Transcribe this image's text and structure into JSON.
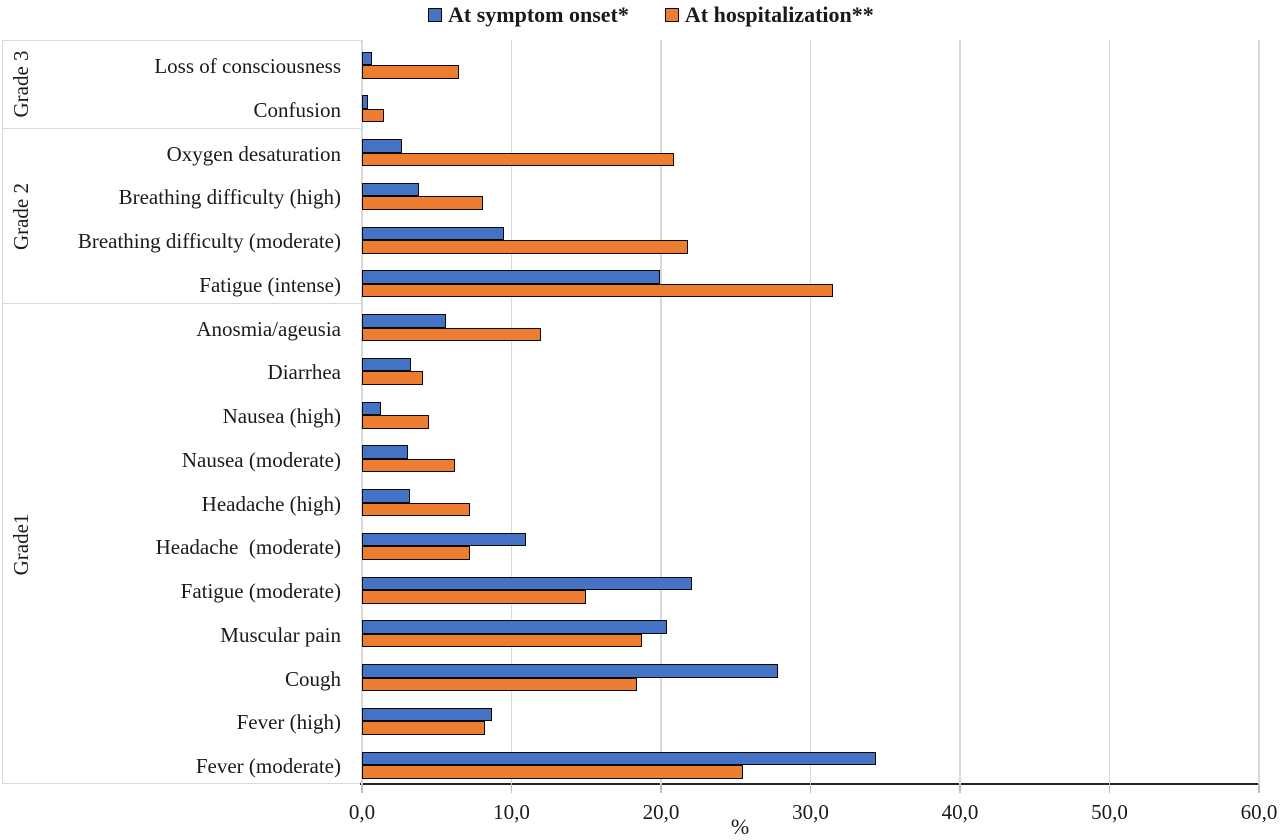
{
  "chart_data": {
    "type": "bar",
    "orientation": "horizontal",
    "title": "",
    "xlabel": "%",
    "xlim": [
      0,
      60
    ],
    "x_ticks": [
      "0,0",
      "10,0",
      "20,0",
      "30,0",
      "40,0",
      "50,0",
      "60,0"
    ],
    "grid": true,
    "legend_position": "top",
    "groups": [
      {
        "label": "Grade 3",
        "categories": [
          "Loss of consciousness",
          "Confusion"
        ]
      },
      {
        "label": "Grade 2",
        "categories": [
          "Oxygen desaturation",
          "Breathing difficulty (high)",
          "Breathing difficulty (moderate)",
          "Fatigue (intense)"
        ]
      },
      {
        "label": "Grade1",
        "categories": [
          "Anosmia/ageusia",
          "Diarrhea",
          "Nausea (high)",
          "Nausea (moderate)",
          "Headache (high)",
          "Headache  (moderate)",
          "Fatigue (moderate)",
          "Muscular pain",
          "Cough",
          "Fever (high)",
          "Fever (moderate)"
        ]
      }
    ],
    "categories": [
      "Loss of consciousness",
      "Confusion",
      "Oxygen desaturation",
      "Breathing difficulty (high)",
      "Breathing difficulty (moderate)",
      "Fatigue (intense)",
      "Anosmia/ageusia",
      "Diarrhea",
      "Nausea (high)",
      "Nausea (moderate)",
      "Headache (high)",
      "Headache  (moderate)",
      "Fatigue (moderate)",
      "Muscular pain",
      "Cough",
      "Fever (high)",
      "Fever (moderate)"
    ],
    "series": [
      {
        "name": "At symptom onset*",
        "color": "#4472C4",
        "values": [
          0.7,
          0.4,
          2.7,
          3.8,
          9.5,
          19.9,
          5.6,
          3.3,
          1.3,
          3.1,
          3.2,
          11.0,
          22.1,
          20.4,
          27.8,
          8.7,
          34.4
        ]
      },
      {
        "name": "At hospitalization**",
        "color": "#ED7D31",
        "values": [
          6.5,
          1.5,
          20.9,
          8.1,
          21.8,
          31.5,
          12.0,
          4.1,
          4.5,
          6.2,
          7.2,
          7.2,
          15.0,
          18.7,
          18.4,
          8.2,
          25.5
        ]
      }
    ]
  },
  "colors": {
    "series_onset": "#4472C4",
    "series_hospitalization": "#ED7D31",
    "gridline": "#D9D9D9",
    "axis_line": "#262626",
    "bar_border": "#0A0A0A"
  }
}
